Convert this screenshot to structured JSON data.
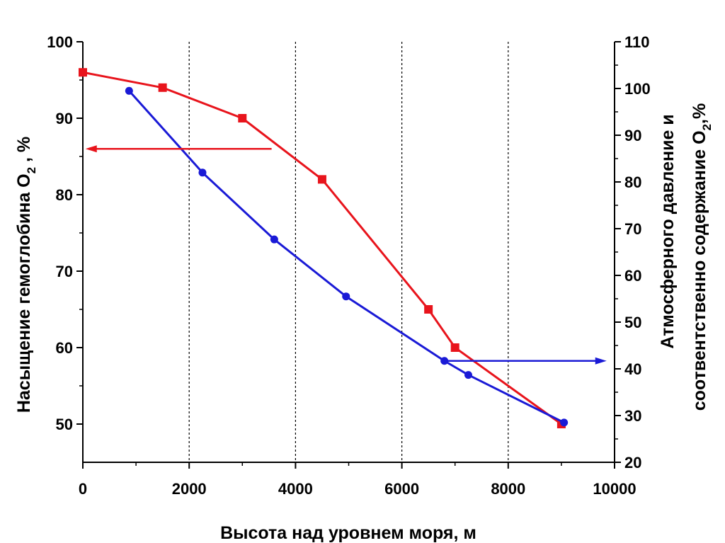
{
  "chart_data": {
    "type": "line",
    "xlabel": "Высота над уровнем моря, м",
    "ylabel_left": {
      "main": "Насыщение гемоглобина O",
      "sub": "2",
      "tail": " , %"
    },
    "ylabel_right_line1": "Атмосферного давление и",
    "ylabel_right_line2": {
      "main": "соотвентственно содержание O",
      "sub": "2",
      "tail": ",%"
    },
    "xlim": [
      0,
      10000
    ],
    "ylim_left": [
      45,
      100
    ],
    "ylim_right": [
      20,
      110
    ],
    "x_ticks": [
      "0",
      "2000",
      "4000",
      "6000",
      "8000",
      "10000"
    ],
    "left_ticks": [
      "50",
      "60",
      "70",
      "80",
      "90",
      "100"
    ],
    "right_ticks": [
      "20",
      "30",
      "40",
      "50",
      "60",
      "70",
      "80",
      "90",
      "100",
      "110"
    ],
    "grid_x": [
      2000,
      4000,
      6000,
      8000
    ],
    "series": [
      {
        "name": "Насыщение гемоглобина O2",
        "axis": "left",
        "color": "#e8141c",
        "marker": "square",
        "x": [
          0,
          1500,
          3000,
          4500,
          6500,
          7000,
          9000
        ],
        "y": [
          96,
          94,
          90,
          82,
          65,
          60,
          50
        ]
      },
      {
        "name": "Атмосферное давление и содержание O2",
        "axis": "right",
        "color": "#1a1ad6",
        "marker": "circle",
        "x": [
          870,
          2250,
          3600,
          4950,
          6800,
          7250,
          9050
        ],
        "y": [
          99.5,
          82,
          67.7,
          55.5,
          41.7,
          38.7,
          28.5
        ]
      }
    ],
    "annotations": [
      {
        "type": "arrow",
        "color": "#e8141c",
        "direction": "left",
        "axis": "left",
        "from": [
          3550,
          86
        ],
        "to": [
          50,
          86
        ]
      },
      {
        "type": "arrow",
        "color": "#1a1ad6",
        "direction": "right",
        "axis": "right",
        "from": [
          6800,
          41.7
        ],
        "to": [
          9850,
          41.7
        ]
      }
    ]
  }
}
